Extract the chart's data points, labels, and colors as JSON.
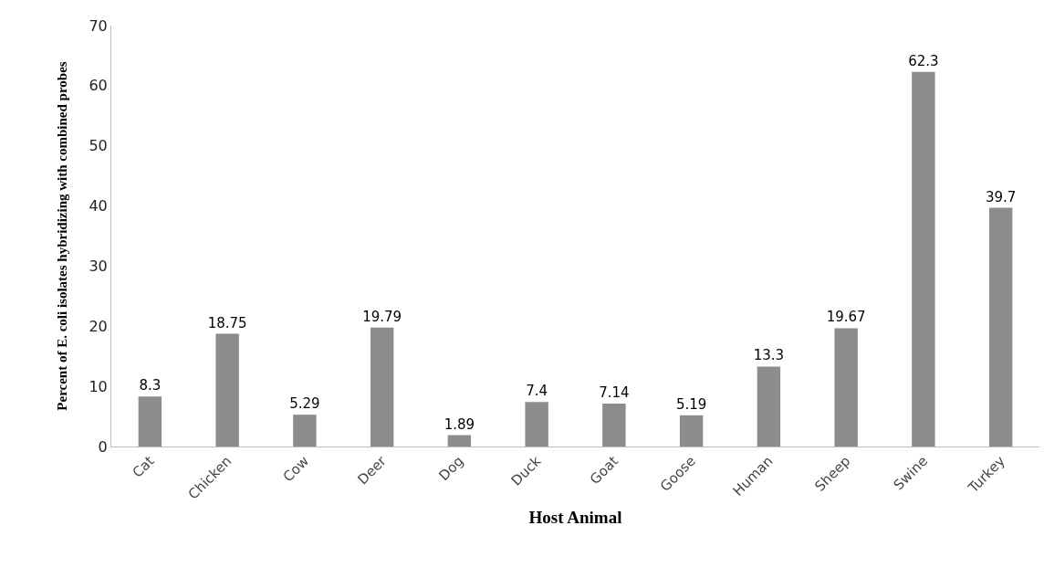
{
  "chart_data": {
    "type": "bar",
    "xlabel": "Host Animal",
    "ylabel": "Percent of E. coli isolates hybridizing with combined probes",
    "categories": [
      "Cat",
      "Chicken",
      "Cow",
      "Deer",
      "Dog",
      "Duck",
      "Goat",
      "Goose",
      "Human",
      "Sheep",
      "Swine",
      "Turkey"
    ],
    "values": [
      8.3,
      18.75,
      5.29,
      19.79,
      1.89,
      7.4,
      7.14,
      5.19,
      13.3,
      19.67,
      62.3,
      39.7
    ],
    "color": "#8c8c8c",
    "data_labels": true,
    "ylim": [
      0,
      70
    ],
    "yticks": [
      0,
      10,
      20,
      30,
      40,
      50,
      60,
      70
    ],
    "grid": false,
    "legend": false
  }
}
